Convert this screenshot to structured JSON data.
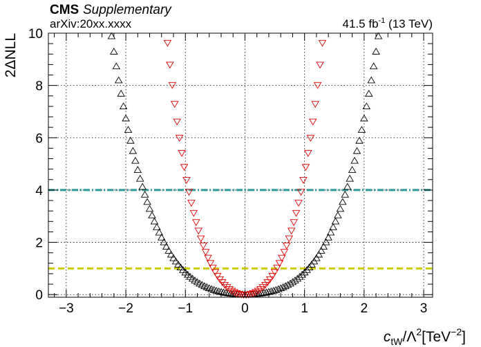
{
  "header": {
    "experiment": "CMS",
    "tag": "Supplementary",
    "reference": "arXiv:20xx.xxxx",
    "luminosity_value": "41.5 fb",
    "luminosity_exponent": "-1",
    "energy": " (13 TeV)"
  },
  "chart_data": {
    "type": "scatter",
    "ylabel": "2ΔNLL",
    "xlabel": {
      "symbol": "c",
      "subscript": "tW",
      "mid": "/Λ",
      "mid_exp": "2",
      "unit_open": "[TeV",
      "unit_exp": "−2",
      "unit_close": "]"
    },
    "xlim": [
      -3.3,
      3.15
    ],
    "ylim": [
      -0.1,
      10.0
    ],
    "xticks": [
      -3,
      -2,
      -1,
      0,
      1,
      2,
      3
    ],
    "yticks": [
      0,
      2,
      4,
      6,
      8,
      10
    ],
    "grid": true,
    "series": [
      {
        "marker": "triangle-up",
        "color": "#000000",
        "a": 0.2806,
        "b": 1.0,
        "x_start": -3.28,
        "x_end": 3.12,
        "step": 0.04
      },
      {
        "marker": "triangle-down",
        "color": "#e00000",
        "a": 1.545,
        "b": 1.0,
        "x_start": -1.86,
        "x_end": 1.7,
        "step": 0.04
      }
    ],
    "reference_lines": [
      {
        "y": 4,
        "color": "#2a9a9a",
        "style": "dash-dot"
      },
      {
        "y": 1,
        "color": "#cccc00",
        "style": "dashed"
      }
    ]
  }
}
